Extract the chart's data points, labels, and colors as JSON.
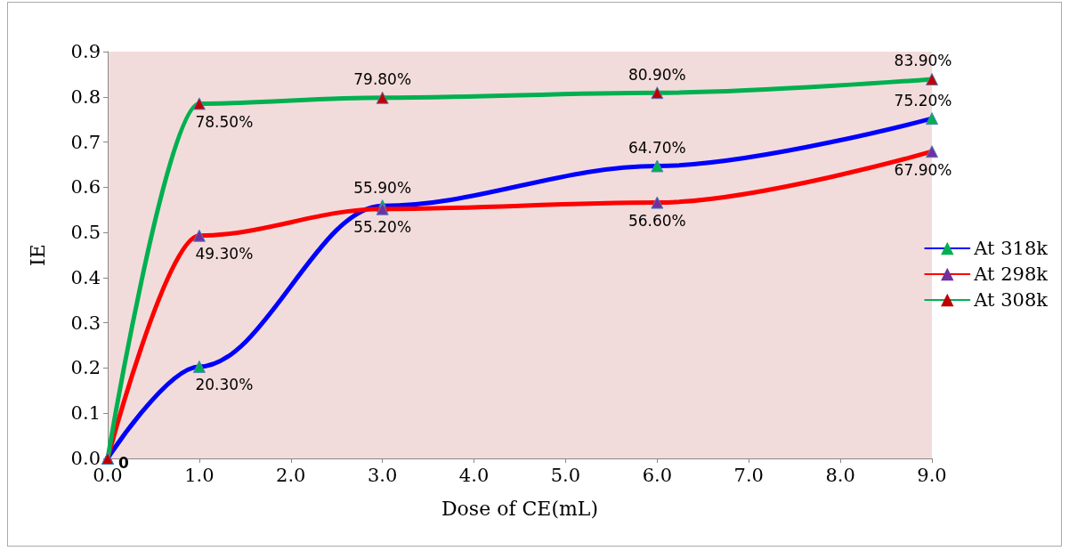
{
  "chart_data": {
    "type": "line",
    "xlabel": "Dose of CE(mL)",
    "ylabel": "IE",
    "x": [
      0,
      1,
      3,
      6,
      9
    ],
    "xlim": [
      0,
      9
    ],
    "xticks": [
      {
        "value": 0,
        "label": "0.0"
      },
      {
        "value": 1,
        "label": "1.0"
      },
      {
        "value": 2,
        "label": "2.0"
      },
      {
        "value": 3,
        "label": "3.0"
      },
      {
        "value": 4,
        "label": "4.0"
      },
      {
        "value": 5,
        "label": "5.0"
      },
      {
        "value": 6,
        "label": "6.0"
      },
      {
        "value": 7,
        "label": "7.0"
      },
      {
        "value": 8,
        "label": "8.0"
      },
      {
        "value": 9,
        "label": "9.0"
      }
    ],
    "ylim": [
      0,
      0.9
    ],
    "yticks": [
      {
        "value": 0,
        "label": "0.0"
      },
      {
        "value": 0.1,
        "label": "0.1"
      },
      {
        "value": 0.2,
        "label": "0.2"
      },
      {
        "value": 0.3,
        "label": "0.3"
      },
      {
        "value": 0.4,
        "label": "0.4"
      },
      {
        "value": 0.5,
        "label": "0.5"
      },
      {
        "value": 0.6,
        "label": "0.6"
      },
      {
        "value": 0.7,
        "label": "0.7"
      },
      {
        "value": 0.8,
        "label": "0.8"
      },
      {
        "value": 0.9,
        "label": "0.9"
      }
    ],
    "marker": "triangle",
    "grid": false,
    "legend": "right",
    "series": [
      {
        "name": "At 318k",
        "color": "#0000ff",
        "colors": [
          "#00b050",
          "#00b050",
          "#00b050",
          "#00b050",
          "#00b050"
        ],
        "values": [
          0,
          0.203,
          0.559,
          0.647,
          0.752
        ],
        "value_labels": [
          null,
          "20.30%",
          "55.90%",
          "64.70%",
          "75.20%"
        ]
      },
      {
        "name": "At 298k",
        "color": "#ff0000",
        "colors": [
          "#7030a0",
          "#7030a0",
          "#7030a0",
          "#7030a0",
          "#7030a0"
        ],
        "values": [
          0,
          0.493,
          0.552,
          0.566,
          0.679
        ],
        "value_labels": [
          null,
          "49.30%",
          "55.20%",
          "56.60%",
          "67.90%"
        ]
      },
      {
        "name": "At 308k",
        "color": "#00b050",
        "colors": [
          "#c00000",
          "#c00000",
          "#c00000",
          "#c00000",
          "#c00000"
        ],
        "values": [
          0,
          0.785,
          0.798,
          0.809,
          0.839
        ],
        "value_labels": [
          "0",
          "78.50%",
          "79.80%",
          "80.90%",
          "83.90%"
        ]
      }
    ]
  }
}
